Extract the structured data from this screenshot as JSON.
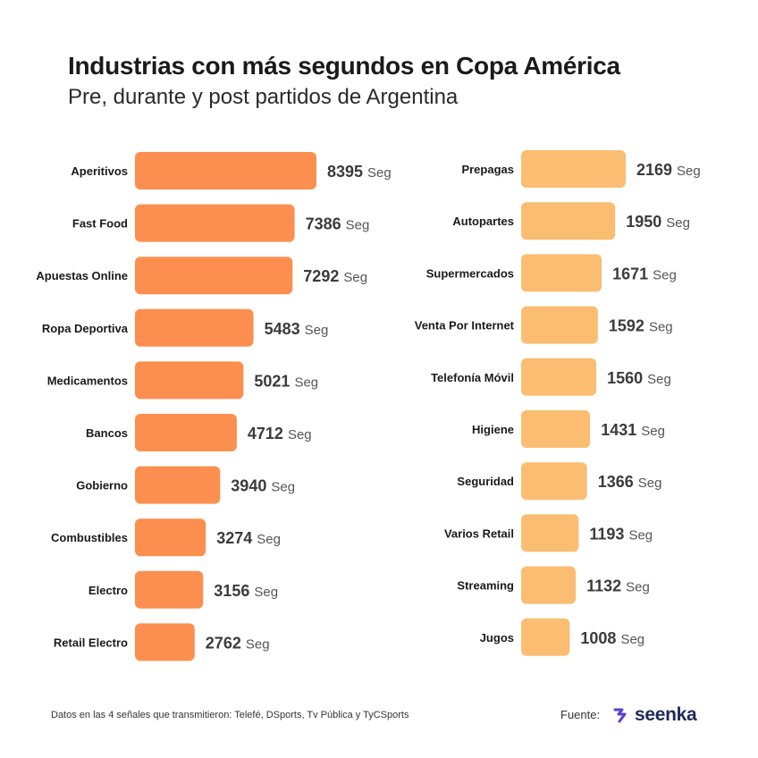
{
  "title": "Industrias con más segundos en Copa América",
  "subtitle": "Pre, durante y post partidos de Argentina",
  "chart_data": [
    {
      "type": "bar",
      "orientation": "horizontal",
      "unit": "Seg",
      "color": "#fc8f4f",
      "categories": [
        "Aperitivos",
        "Fast Food",
        "Apuestas Online",
        "Ropa Deportiva",
        "Medicamentos",
        "Bancos",
        "Gobierno",
        "Combustibles",
        "Electro",
        "Retail Electro"
      ],
      "values": [
        8395,
        7386,
        7292,
        5483,
        5021,
        4712,
        3940,
        3274,
        3156,
        2762
      ]
    },
    {
      "type": "bar",
      "orientation": "horizontal",
      "unit": "Seg",
      "color": "#fbbd71",
      "categories": [
        "Prepagas",
        "Autopartes",
        "Supermercados",
        "Venta Por Internet",
        "Telefonía Móvil",
        "Higiene",
        "Seguridad",
        "Varios Retail",
        "Streaming",
        "Jugos"
      ],
      "values": [
        2169,
        1950,
        1671,
        1592,
        1560,
        1431,
        1366,
        1193,
        1132,
        1008
      ]
    }
  ],
  "footer": {
    "note": "Datos en las 4 señales que transmitieron: Telefé, DSports, Tv Pública y TyCSports",
    "source_label": "Fuente:",
    "brand": "seenka"
  },
  "icons": {
    "brand": "seenka-logo-icon"
  }
}
